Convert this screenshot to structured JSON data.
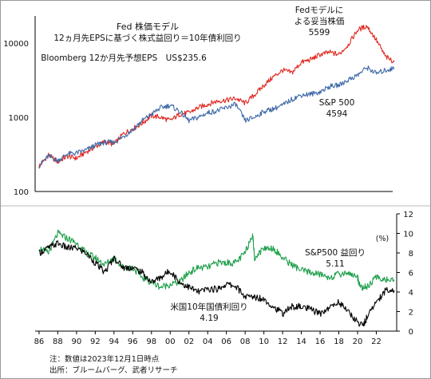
{
  "chart_data": [
    {
      "type": "line",
      "title": "Fed 株価モデル",
      "subtitle": "12ヵ月先EPSに基づく株式益回り＝10年債利回り",
      "note": "Bloomberg 12か月先予想EPS　US$235.6",
      "y_scale": "log",
      "ylim": [
        100,
        25000
      ],
      "y_ticks": [
        "100",
        "1000",
        "10000"
      ],
      "xlim": [
        1985.75,
        2023.92
      ],
      "series": [
        {
          "name": "Fedモデルによる妥当株価",
          "label_lines": [
            "Fedモデルに",
            "よる妥当株価",
            "5599"
          ],
          "color": "#e0261f",
          "x": [
            1986,
            1987,
            1988,
            1989,
            1990,
            1991,
            1992,
            1993,
            1994,
            1995,
            1996,
            1997,
            1998,
            1999,
            2000,
            2001,
            2002,
            2003,
            2004,
            2005,
            2006,
            2007,
            2008,
            2009,
            2010,
            2011,
            2012,
            2013,
            2014,
            2015,
            2016,
            2017,
            2018,
            2019,
            2020,
            2021,
            2022,
            2023,
            2023.92
          ],
          "y": [
            220,
            310,
            250,
            300,
            280,
            340,
            400,
            470,
            430,
            600,
            700,
            830,
            1050,
            1000,
            900,
            1100,
            1150,
            1350,
            1500,
            1650,
            1700,
            1800,
            1550,
            2000,
            2700,
            3500,
            4300,
            4000,
            5500,
            6000,
            7000,
            7500,
            7000,
            9500,
            15000,
            17000,
            11000,
            6500,
            5599
          ]
        },
        {
          "name": "S&P 500",
          "label_lines": [
            "S&P 500",
            "4594"
          ],
          "color": "#3f6aa8",
          "x": [
            1986,
            1987,
            1988,
            1989,
            1990,
            1991,
            1992,
            1993,
            1994,
            1995,
            1996,
            1997,
            1998,
            1999,
            2000,
            2001,
            2002,
            2003,
            2004,
            2005,
            2006,
            2007,
            2008,
            2009,
            2010,
            2011,
            2012,
            2013,
            2014,
            2015,
            2016,
            2017,
            2018,
            2019,
            2020,
            2021,
            2022,
            2023,
            2023.92
          ],
          "y": [
            220,
            300,
            260,
            320,
            330,
            360,
            420,
            460,
            460,
            550,
            680,
            900,
            1100,
            1350,
            1450,
            1200,
            900,
            1000,
            1150,
            1220,
            1350,
            1500,
            900,
            1000,
            1200,
            1300,
            1450,
            1750,
            2000,
            2050,
            2200,
            2600,
            2700,
            3200,
            3700,
            4700,
            3900,
            4300,
            4594
          ]
        }
      ]
    },
    {
      "type": "line",
      "xlim": [
        1985.75,
        2023.92
      ],
      "ylim": [
        0,
        12
      ],
      "unit": "(%)",
      "y_ticks": [
        0,
        2,
        4,
        6,
        8,
        10,
        12
      ],
      "x_ticks": [
        "86",
        "88",
        "90",
        "92",
        "94",
        "96",
        "98",
        "00",
        "02",
        "04",
        "06",
        "08",
        "10",
        "12",
        "14",
        "16",
        "18",
        "20",
        "22"
      ],
      "series": [
        {
          "name": "S&P500 益回り",
          "label_lines": [
            "S&P500 益回り",
            "5.11"
          ],
          "color": "#1ea04a",
          "x": [
            1986,
            1987,
            1988,
            1989,
            1990,
            1991,
            1992,
            1993,
            1994,
            1995,
            1996,
            1997,
            1998,
            1999,
            2000,
            2001,
            2002,
            2003,
            2004,
            2005,
            2006,
            2007,
            2008,
            2008.8,
            2009,
            2010,
            2011,
            2012,
            2013,
            2014,
            2015,
            2016,
            2017,
            2018,
            2019,
            2020,
            2020.3,
            2021,
            2022,
            2023,
            2023.92
          ],
          "y": [
            8.5,
            8.0,
            10.0,
            9.5,
            9.0,
            8.0,
            7.5,
            6.8,
            7.5,
            6.5,
            6.5,
            5.5,
            5.0,
            4.5,
            4.8,
            5.0,
            6.0,
            6.5,
            6.5,
            7.0,
            7.0,
            7.0,
            8.0,
            10.0,
            7.5,
            8.5,
            8.5,
            7.5,
            6.8,
            6.2,
            6.0,
            5.8,
            5.5,
            5.8,
            6.0,
            5.5,
            4.5,
            4.5,
            5.5,
            5.3,
            5.11
          ]
        },
        {
          "name": "米国10年国債利回り",
          "label_lines": [
            "米国10年国債利回り",
            "4.19"
          ],
          "color": "#000000",
          "x": [
            1986,
            1987,
            1988,
            1989,
            1990,
            1991,
            1992,
            1993,
            1994,
            1995,
            1996,
            1997,
            1998,
            1999,
            2000,
            2001,
            2002,
            2003,
            2004,
            2005,
            2006,
            2007,
            2008,
            2009,
            2010,
            2011,
            2012,
            2013,
            2014,
            2015,
            2016,
            2017,
            2018,
            2019,
            2020,
            2020.6,
            2021,
            2022,
            2023,
            2023.92
          ],
          "y": [
            8.0,
            8.5,
            9.0,
            8.5,
            8.5,
            8.0,
            7.0,
            6.0,
            7.5,
            6.5,
            6.5,
            6.0,
            5.0,
            5.5,
            6.2,
            5.0,
            4.5,
            4.0,
            4.3,
            4.3,
            4.8,
            4.6,
            3.5,
            3.5,
            3.3,
            2.5,
            1.8,
            2.5,
            2.5,
            2.2,
            1.8,
            2.4,
            3.0,
            2.0,
            0.9,
            0.6,
            1.4,
            3.0,
            4.2,
            4.19
          ]
        }
      ]
    }
  ],
  "footer": {
    "note": "注：数値は2023年12月1日時点",
    "source": "出所：ブルームバーグ、武者リサーチ"
  }
}
